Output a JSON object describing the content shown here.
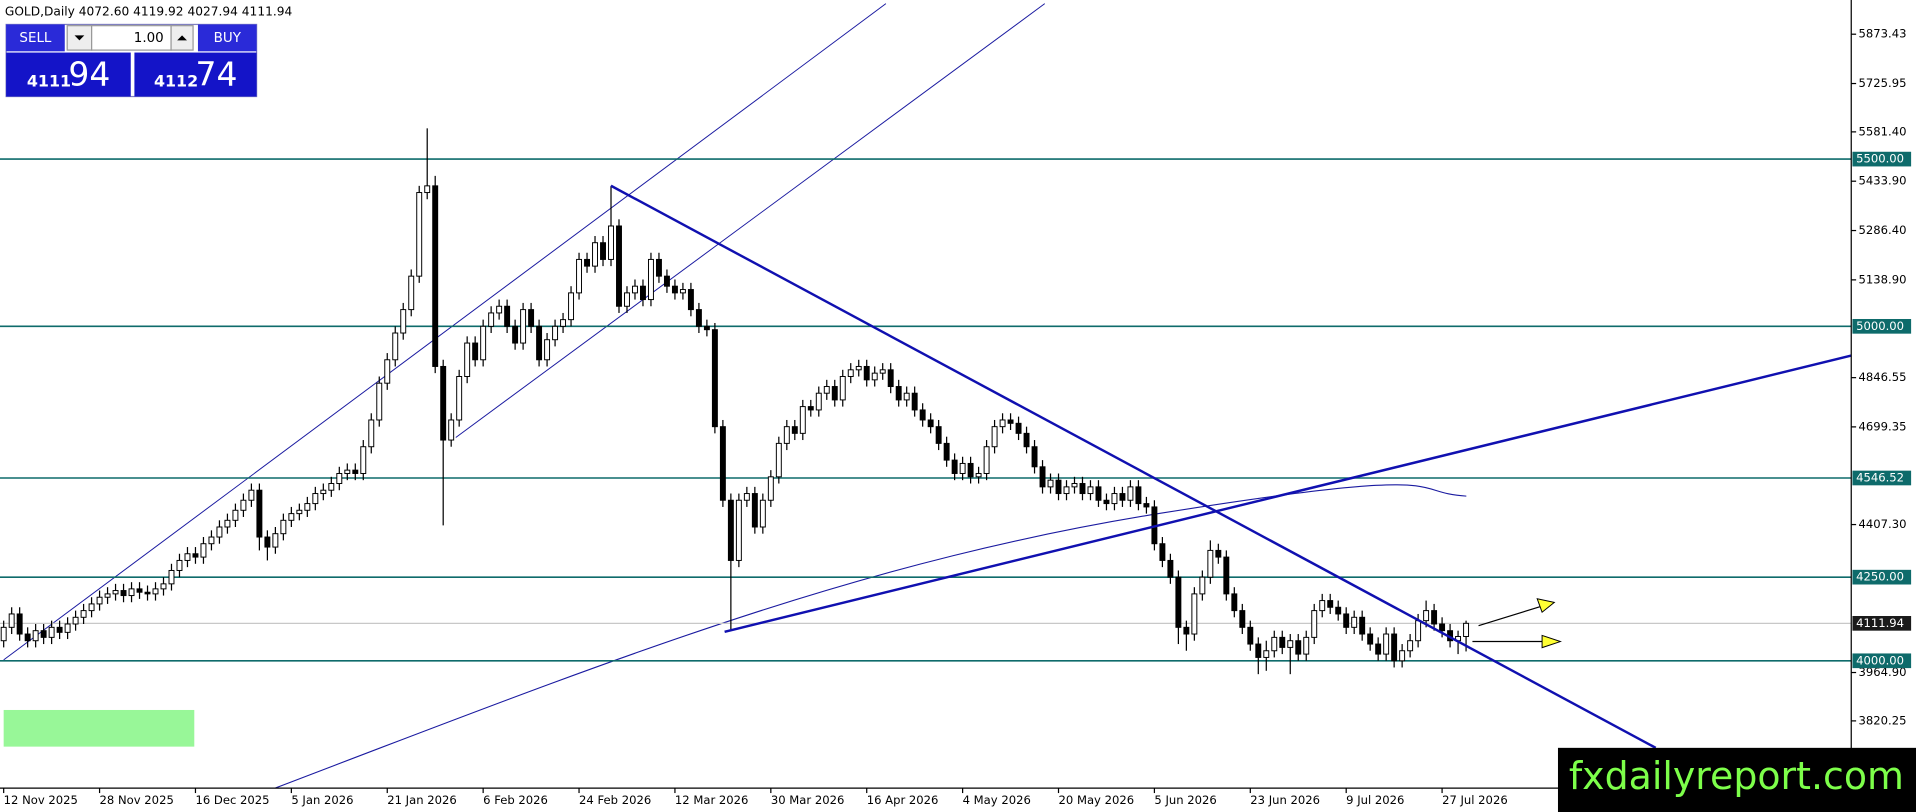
{
  "chart_data": {
    "type": "candlestick",
    "title": "GOLD,Daily  4072.60 4119.92 4027.94 4111.94",
    "candles": [
      [
        4060,
        4120,
        4040,
        4100
      ],
      [
        4100,
        4160,
        4080,
        4140
      ],
      [
        4140,
        4160,
        4060,
        4080
      ],
      [
        4080,
        4100,
        4040,
        4060
      ],
      [
        4060,
        4110,
        4040,
        4090
      ],
      [
        4090,
        4110,
        4050,
        4070
      ],
      [
        4070,
        4120,
        4050,
        4100
      ],
      [
        4100,
        4120,
        4065,
        4085
      ],
      [
        4085,
        4130,
        4065,
        4110
      ],
      [
        4110,
        4150,
        4090,
        4130
      ],
      [
        4130,
        4170,
        4110,
        4150
      ],
      [
        4150,
        4190,
        4130,
        4170
      ],
      [
        4170,
        4210,
        4150,
        4190
      ],
      [
        4190,
        4220,
        4170,
        4200
      ],
      [
        4200,
        4230,
        4180,
        4210
      ],
      [
        4210,
        4230,
        4175,
        4195
      ],
      [
        4195,
        4235,
        4175,
        4215
      ],
      [
        4215,
        4235,
        4185,
        4205
      ],
      [
        4205,
        4225,
        4180,
        4200
      ],
      [
        4200,
        4235,
        4180,
        4215
      ],
      [
        4215,
        4250,
        4195,
        4230
      ],
      [
        4230,
        4290,
        4210,
        4270
      ],
      [
        4270,
        4320,
        4250,
        4300
      ],
      [
        4300,
        4340,
        4280,
        4320
      ],
      [
        4320,
        4340,
        4290,
        4310
      ],
      [
        4310,
        4370,
        4290,
        4350
      ],
      [
        4350,
        4390,
        4330,
        4370
      ],
      [
        4370,
        4420,
        4350,
        4400
      ],
      [
        4400,
        4440,
        4380,
        4420
      ],
      [
        4420,
        4470,
        4400,
        4450
      ],
      [
        4450,
        4500,
        4430,
        4480
      ],
      [
        4480,
        4530,
        4460,
        4510
      ],
      [
        4510,
        4530,
        4330,
        4370
      ],
      [
        4370,
        4390,
        4300,
        4340
      ],
      [
        4340,
        4400,
        4320,
        4380
      ],
      [
        4380,
        4440,
        4360,
        4420
      ],
      [
        4420,
        4460,
        4400,
        4440
      ],
      [
        4440,
        4470,
        4420,
        4450
      ],
      [
        4450,
        4490,
        4430,
        4470
      ],
      [
        4470,
        4520,
        4450,
        4500
      ],
      [
        4500,
        4530,
        4480,
        4510
      ],
      [
        4510,
        4550,
        4490,
        4530
      ],
      [
        4530,
        4580,
        4510,
        4560
      ],
      [
        4560,
        4590,
        4540,
        4570
      ],
      [
        4570,
        4590,
        4540,
        4560
      ],
      [
        4560,
        4660,
        4540,
        4640
      ],
      [
        4640,
        4740,
        4620,
        4720
      ],
      [
        4720,
        4850,
        4700,
        4830
      ],
      [
        4830,
        4920,
        4810,
        4900
      ],
      [
        4900,
        5000,
        4880,
        4980
      ],
      [
        4980,
        5070,
        4960,
        5050
      ],
      [
        5050,
        5170,
        5030,
        5150
      ],
      [
        5150,
        5420,
        5130,
        5400
      ],
      [
        5400,
        5592,
        5380,
        5420
      ],
      [
        5420,
        5450,
        4860,
        4880
      ],
      [
        4880,
        4900,
        4405,
        4660
      ],
      [
        4660,
        4740,
        4640,
        4720
      ],
      [
        4720,
        4870,
        4700,
        4850
      ],
      [
        4850,
        4970,
        4830,
        4950
      ],
      [
        4950,
        4970,
        4880,
        4900
      ],
      [
        4900,
        5020,
        4880,
        5000
      ],
      [
        5000,
        5060,
        4980,
        5040
      ],
      [
        5040,
        5080,
        5020,
        5060
      ],
      [
        5060,
        5080,
        4980,
        5000
      ],
      [
        5000,
        5020,
        4930,
        4950
      ],
      [
        4950,
        5070,
        4930,
        5050
      ],
      [
        5050,
        5070,
        4980,
        5000
      ],
      [
        5000,
        5020,
        4880,
        4900
      ],
      [
        4900,
        4980,
        4880,
        4960
      ],
      [
        4960,
        5020,
        4940,
        5000
      ],
      [
        5000,
        5040,
        4980,
        5020
      ],
      [
        5020,
        5120,
        5000,
        5100
      ],
      [
        5100,
        5220,
        5080,
        5200
      ],
      [
        5200,
        5220,
        5160,
        5180
      ],
      [
        5180,
        5270,
        5160,
        5250
      ],
      [
        5250,
        5270,
        5180,
        5200
      ],
      [
        5200,
        5420,
        5180,
        5300
      ],
      [
        5300,
        5320,
        5040,
        5060
      ],
      [
        5060,
        5120,
        5040,
        5100
      ],
      [
        5100,
        5140,
        5080,
        5120
      ],
      [
        5120,
        5140,
        5060,
        5080
      ],
      [
        5080,
        5220,
        5060,
        5200
      ],
      [
        5200,
        5220,
        5130,
        5150
      ],
      [
        5150,
        5170,
        5100,
        5120
      ],
      [
        5120,
        5140,
        5080,
        5100
      ],
      [
        5100,
        5130,
        5080,
        5110
      ],
      [
        5110,
        5130,
        5030,
        5050
      ],
      [
        5050,
        5070,
        4980,
        5000
      ],
      [
        5000,
        5020,
        4970,
        4990
      ],
      [
        4990,
        5010,
        4680,
        4700
      ],
      [
        4700,
        4720,
        4460,
        4480
      ],
      [
        4480,
        4500,
        4094,
        4300
      ],
      [
        4300,
        4500,
        4280,
        4480
      ],
      [
        4480,
        4520,
        4460,
        4500
      ],
      [
        4500,
        4520,
        4380,
        4400
      ],
      [
        4400,
        4500,
        4380,
        4480
      ],
      [
        4480,
        4570,
        4460,
        4550
      ],
      [
        4550,
        4670,
        4530,
        4650
      ],
      [
        4650,
        4720,
        4630,
        4700
      ],
      [
        4700,
        4720,
        4660,
        4680
      ],
      [
        4680,
        4780,
        4660,
        4760
      ],
      [
        4760,
        4780,
        4730,
        4750
      ],
      [
        4750,
        4820,
        4730,
        4800
      ],
      [
        4800,
        4840,
        4780,
        4820
      ],
      [
        4820,
        4840,
        4760,
        4780
      ],
      [
        4780,
        4870,
        4760,
        4850
      ],
      [
        4850,
        4890,
        4830,
        4870
      ],
      [
        4870,
        4900,
        4850,
        4880
      ],
      [
        4880,
        4900,
        4820,
        4840
      ],
      [
        4840,
        4880,
        4820,
        4860
      ],
      [
        4860,
        4890,
        4840,
        4870
      ],
      [
        4870,
        4890,
        4800,
        4820
      ],
      [
        4820,
        4840,
        4760,
        4780
      ],
      [
        4780,
        4820,
        4760,
        4800
      ],
      [
        4800,
        4820,
        4730,
        4750
      ],
      [
        4750,
        4770,
        4700,
        4720
      ],
      [
        4720,
        4740,
        4680,
        4700
      ],
      [
        4700,
        4720,
        4630,
        4650
      ],
      [
        4650,
        4670,
        4580,
        4600
      ],
      [
        4600,
        4620,
        4540,
        4560
      ],
      [
        4560,
        4610,
        4540,
        4590
      ],
      [
        4590,
        4610,
        4530,
        4550
      ],
      [
        4550,
        4580,
        4530,
        4560
      ],
      [
        4560,
        4660,
        4540,
        4640
      ],
      [
        4640,
        4720,
        4620,
        4700
      ],
      [
        4700,
        4740,
        4680,
        4720
      ],
      [
        4720,
        4740,
        4690,
        4710
      ],
      [
        4710,
        4730,
        4660,
        4680
      ],
      [
        4680,
        4700,
        4620,
        4640
      ],
      [
        4640,
        4660,
        4560,
        4580
      ],
      [
        4580,
        4600,
        4500,
        4520
      ],
      [
        4520,
        4560,
        4500,
        4540
      ],
      [
        4540,
        4560,
        4480,
        4500
      ],
      [
        4500,
        4540,
        4480,
        4520
      ],
      [
        4520,
        4550,
        4500,
        4530
      ],
      [
        4530,
        4550,
        4480,
        4500
      ],
      [
        4500,
        4540,
        4480,
        4520
      ],
      [
        4520,
        4540,
        4460,
        4480
      ],
      [
        4480,
        4500,
        4450,
        4470
      ],
      [
        4470,
        4520,
        4450,
        4500
      ],
      [
        4500,
        4520,
        4460,
        4480
      ],
      [
        4480,
        4540,
        4460,
        4520
      ],
      [
        4520,
        4540,
        4450,
        4470
      ],
      [
        4470,
        4490,
        4440,
        4460
      ],
      [
        4460,
        4480,
        4330,
        4350
      ],
      [
        4350,
        4370,
        4280,
        4300
      ],
      [
        4300,
        4320,
        4230,
        4250
      ],
      [
        4250,
        4270,
        4050,
        4100
      ],
      [
        4100,
        4120,
        4030,
        4080
      ],
      [
        4080,
        4220,
        4060,
        4200
      ],
      [
        4200,
        4270,
        4180,
        4250
      ],
      [
        4250,
        4360,
        4230,
        4330
      ],
      [
        4330,
        4350,
        4290,
        4310
      ],
      [
        4310,
        4330,
        4180,
        4200
      ],
      [
        4200,
        4220,
        4130,
        4150
      ],
      [
        4150,
        4170,
        4080,
        4100
      ],
      [
        4100,
        4120,
        4030,
        4050
      ],
      [
        4050,
        4070,
        3960,
        4010
      ],
      [
        4010,
        4060,
        3970,
        4030
      ],
      [
        4030,
        4090,
        4010,
        4070
      ],
      [
        4070,
        4090,
        4020,
        4040
      ],
      [
        4040,
        4080,
        3960,
        4060
      ],
      [
        4060,
        4080,
        4000,
        4020
      ],
      [
        4020,
        4090,
        4000,
        4070
      ],
      [
        4070,
        4170,
        4050,
        4150
      ],
      [
        4150,
        4200,
        4130,
        4180
      ],
      [
        4180,
        4200,
        4140,
        4160
      ],
      [
        4160,
        4180,
        4120,
        4140
      ],
      [
        4140,
        4160,
        4080,
        4100
      ],
      [
        4100,
        4150,
        4080,
        4130
      ],
      [
        4130,
        4150,
        4060,
        4080
      ],
      [
        4080,
        4100,
        4030,
        4050
      ],
      [
        4050,
        4070,
        4000,
        4020
      ],
      [
        4020,
        4100,
        4000,
        4080
      ],
      [
        4080,
        4100,
        3980,
        4000
      ],
      [
        4000,
        4050,
        3980,
        4030
      ],
      [
        4030,
        4080,
        4010,
        4060
      ],
      [
        4060,
        4140,
        4040,
        4120
      ],
      [
        4120,
        4180,
        4100,
        4150
      ],
      [
        4150,
        4170,
        4090,
        4110
      ],
      [
        4110,
        4130,
        4070,
        4090
      ],
      [
        4090,
        4110,
        4040,
        4060
      ],
      [
        4060,
        4090,
        4020,
        4072.6
      ],
      [
        4072.6,
        4119.92,
        4027.94,
        4111.94
      ]
    ],
    "xlim": [
      -0.46,
      231.2
    ],
    "xticks": [
      {
        "value": 0,
        "label": "12 Nov 2025"
      },
      {
        "value": 12,
        "label": "28 Nov 2025"
      },
      {
        "value": 24,
        "label": "16 Dec 2025"
      },
      {
        "value": 36,
        "label": "5 Jan 2026"
      },
      {
        "value": 48,
        "label": "21 Jan 2026"
      },
      {
        "value": 60,
        "label": "6 Feb 2026"
      },
      {
        "value": 72,
        "label": "24 Feb 2026"
      },
      {
        "value": 84,
        "label": "12 Mar 2026"
      },
      {
        "value": 96,
        "label": "30 Mar 2026"
      },
      {
        "value": 108,
        "label": "16 Apr 2026"
      },
      {
        "value": 120,
        "label": "4 May 2026"
      },
      {
        "value": 132,
        "label": "20 May 2026"
      },
      {
        "value": 144,
        "label": "5 Jun 2026"
      },
      {
        "value": 156,
        "label": "23 Jun 2026"
      },
      {
        "value": 168,
        "label": "9 Jul 2026"
      },
      {
        "value": 180,
        "label": "27 Jul 2026"
      }
    ],
    "ylim": [
      3619.1,
      5975.7
    ],
    "yticks": [
      5873.43,
      5725.95,
      {
        "value": 5581.4,
        "label": "5581.40"
      },
      {
        "value": 5433.9,
        "label": "5433.90"
      },
      {
        "value": 5286.4,
        "label": "5286.40"
      },
      {
        "value": 5138.9,
        "label": "5138.90"
      },
      4846.55,
      4699.35,
      {
        "value": 4407.3,
        "label": "4407.30"
      },
      {
        "value": 3964.9,
        "label": "3964.90"
      },
      3820.25
    ],
    "levels": [
      {
        "value": 5500,
        "label": "5500.00"
      },
      {
        "value": 5000,
        "label": "5000.00"
      },
      {
        "value": 4546.52,
        "label": "4546.52"
      },
      {
        "value": 4250,
        "label": "4250.00"
      },
      {
        "value": 4000,
        "label": "4000.00"
      }
    ],
    "last": {
      "value": 4111.94,
      "label": "4111.94"
    },
    "colors": {
      "up": "#ffffff",
      "down": "#000000",
      "outline": "#000000",
      "level": "#0e6b6b",
      "last": "#c8c8c8"
    }
  },
  "trade_panel": {
    "sell": "SELL",
    "lot": "1.00",
    "buy": "BUY",
    "bid_big": "4111",
    "bid_small": "94",
    "ask_big": "4112",
    "ask_small": "74"
  },
  "watermark": "fxdailyreport.com"
}
